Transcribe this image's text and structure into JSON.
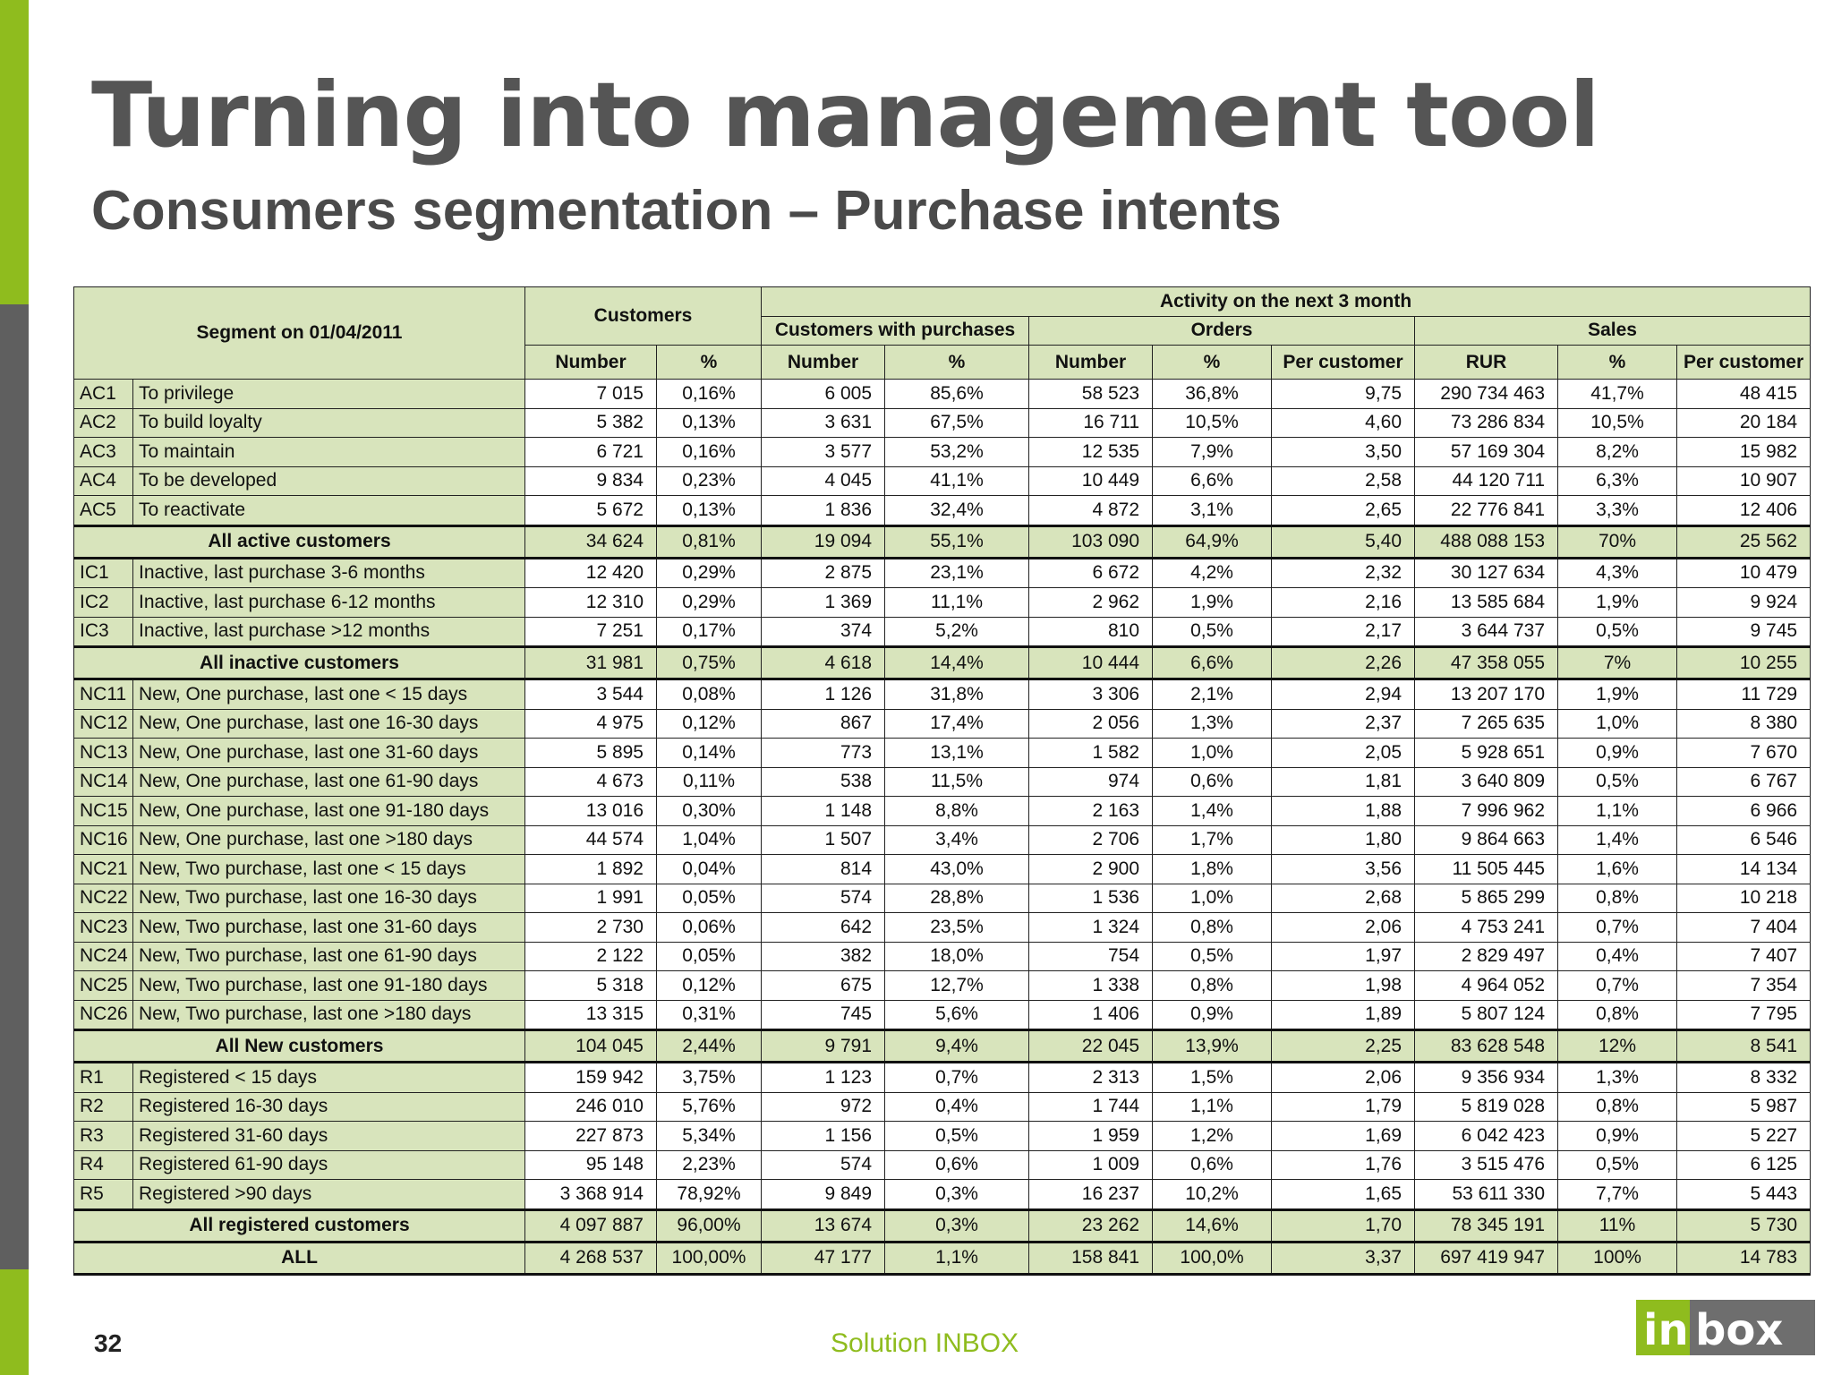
{
  "slide": {
    "title": "Turning into management tool",
    "subtitle": "Consumers segmentation – Purchase intents",
    "page_number": "32",
    "footer": "Solution INBOX",
    "logo_text": "inbox",
    "colors": {
      "accent_green": "#8fbc1e",
      "side_dark": "#5f5f5f",
      "table_fill": "#d8e4bc",
      "title": "#555555"
    }
  },
  "table": {
    "headers": {
      "segment": "Segment on 01/04/2011",
      "customers": "Customers",
      "activity": "Activity on the next 3 month",
      "customers_with_purchases": "Customers with purchases",
      "orders": "Orders",
      "sales": "Sales",
      "sub": [
        "Number",
        "%",
        "Number",
        "%",
        "Number",
        "%",
        "Per customer",
        "RUR",
        "%",
        "Per customer"
      ]
    },
    "rows": [
      {
        "code": "AC1",
        "label": "To privilege",
        "v": [
          "7 015",
          "0,16%",
          "6 005",
          "85,6%",
          "58 523",
          "36,8%",
          "9,75",
          "290 734 463",
          "41,7%",
          "48 415"
        ]
      },
      {
        "code": "AC2",
        "label": "To build loyalty",
        "v": [
          "5 382",
          "0,13%",
          "3 631",
          "67,5%",
          "16 711",
          "10,5%",
          "4,60",
          "73 286 834",
          "10,5%",
          "20 184"
        ]
      },
      {
        "code": "AC3",
        "label": "To maintain",
        "v": [
          "6 721",
          "0,16%",
          "3 577",
          "53,2%",
          "12 535",
          "7,9%",
          "3,50",
          "57 169 304",
          "8,2%",
          "15 982"
        ]
      },
      {
        "code": "AC4",
        "label": "To be developed",
        "v": [
          "9 834",
          "0,23%",
          "4 045",
          "41,1%",
          "10 449",
          "6,6%",
          "2,58",
          "44 120 711",
          "6,3%",
          "10 907"
        ]
      },
      {
        "code": "AC5",
        "label": "To reactivate",
        "v": [
          "5 672",
          "0,13%",
          "1 836",
          "32,4%",
          "4 872",
          "3,1%",
          "2,65",
          "22 776 841",
          "3,3%",
          "12 406"
        ]
      },
      {
        "summary": "All active customers",
        "v": [
          "34 624",
          "0,81%",
          "19 094",
          "55,1%",
          "103 090",
          "64,9%",
          "5,40",
          "488 088 153",
          "70%",
          "25 562"
        ]
      },
      {
        "code": "IC1",
        "label": "Inactive, last purchase 3-6 months",
        "v": [
          "12 420",
          "0,29%",
          "2 875",
          "23,1%",
          "6 672",
          "4,2%",
          "2,32",
          "30 127 634",
          "4,3%",
          "10 479"
        ]
      },
      {
        "code": "IC2",
        "label": "Inactive, last purchase 6-12 months",
        "v": [
          "12 310",
          "0,29%",
          "1 369",
          "11,1%",
          "2 962",
          "1,9%",
          "2,16",
          "13 585 684",
          "1,9%",
          "9 924"
        ]
      },
      {
        "code": "IC3",
        "label": "Inactive, last purchase >12 months",
        "v": [
          "7 251",
          "0,17%",
          "374",
          "5,2%",
          "810",
          "0,5%",
          "2,17",
          "3 644 737",
          "0,5%",
          "9 745"
        ]
      },
      {
        "summary": "All inactive customers",
        "v": [
          "31 981",
          "0,75%",
          "4 618",
          "14,4%",
          "10 444",
          "6,6%",
          "2,26",
          "47 358 055",
          "7%",
          "10 255"
        ]
      },
      {
        "code": "NC11",
        "label": "New, One purchase, last one < 15 days",
        "v": [
          "3 544",
          "0,08%",
          "1 126",
          "31,8%",
          "3 306",
          "2,1%",
          "2,94",
          "13 207 170",
          "1,9%",
          "11 729"
        ]
      },
      {
        "code": "NC12",
        "label": "New, One purchase, last one 16-30 days",
        "v": [
          "4 975",
          "0,12%",
          "867",
          "17,4%",
          "2 056",
          "1,3%",
          "2,37",
          "7 265 635",
          "1,0%",
          "8 380"
        ]
      },
      {
        "code": "NC13",
        "label": "New, One purchase, last one 31-60 days",
        "v": [
          "5 895",
          "0,14%",
          "773",
          "13,1%",
          "1 582",
          "1,0%",
          "2,05",
          "5 928 651",
          "0,9%",
          "7 670"
        ]
      },
      {
        "code": "NC14",
        "label": "New, One purchase, last one 61-90 days",
        "v": [
          "4 673",
          "0,11%",
          "538",
          "11,5%",
          "974",
          "0,6%",
          "1,81",
          "3 640 809",
          "0,5%",
          "6 767"
        ]
      },
      {
        "code": "NC15",
        "label": "New, One purchase, last one 91-180 days",
        "v": [
          "13 016",
          "0,30%",
          "1 148",
          "8,8%",
          "2 163",
          "1,4%",
          "1,88",
          "7 996 962",
          "1,1%",
          "6 966"
        ]
      },
      {
        "code": "NC16",
        "label": "New, One purchase, last one >180 days",
        "v": [
          "44 574",
          "1,04%",
          "1 507",
          "3,4%",
          "2 706",
          "1,7%",
          "1,80",
          "9 864 663",
          "1,4%",
          "6 546"
        ]
      },
      {
        "code": "NC21",
        "label": "New, Two purchase, last one < 15 days",
        "v": [
          "1 892",
          "0,04%",
          "814",
          "43,0%",
          "2 900",
          "1,8%",
          "3,56",
          "11 505 445",
          "1,6%",
          "14 134"
        ]
      },
      {
        "code": "NC22",
        "label": "New, Two purchase, last one 16-30 days",
        "v": [
          "1 991",
          "0,05%",
          "574",
          "28,8%",
          "1 536",
          "1,0%",
          "2,68",
          "5 865 299",
          "0,8%",
          "10 218"
        ]
      },
      {
        "code": "NC23",
        "label": "New, Two purchase, last one 31-60 days",
        "v": [
          "2 730",
          "0,06%",
          "642",
          "23,5%",
          "1 324",
          "0,8%",
          "2,06",
          "4 753 241",
          "0,7%",
          "7 404"
        ]
      },
      {
        "code": "NC24",
        "label": "New, Two purchase, last one 61-90 days",
        "v": [
          "2 122",
          "0,05%",
          "382",
          "18,0%",
          "754",
          "0,5%",
          "1,97",
          "2 829 497",
          "0,4%",
          "7 407"
        ]
      },
      {
        "code": "NC25",
        "label": "New, Two purchase, last one 91-180 days",
        "v": [
          "5 318",
          "0,12%",
          "675",
          "12,7%",
          "1 338",
          "0,8%",
          "1,98",
          "4 964 052",
          "0,7%",
          "7 354"
        ]
      },
      {
        "code": "NC26",
        "label": "New, Two purchase, last one >180 days",
        "v": [
          "13 315",
          "0,31%",
          "745",
          "5,6%",
          "1 406",
          "0,9%",
          "1,89",
          "5 807 124",
          "0,8%",
          "7 795"
        ]
      },
      {
        "summary": "All New customers",
        "v": [
          "104 045",
          "2,44%",
          "9 791",
          "9,4%",
          "22 045",
          "13,9%",
          "2,25",
          "83 628 548",
          "12%",
          "8 541"
        ]
      },
      {
        "code": "R1",
        "label": "Registered < 15 days",
        "v": [
          "159 942",
          "3,75%",
          "1 123",
          "0,7%",
          "2 313",
          "1,5%",
          "2,06",
          "9 356 934",
          "1,3%",
          "8 332"
        ]
      },
      {
        "code": "R2",
        "label": "Registered  16-30 days",
        "v": [
          "246 010",
          "5,76%",
          "972",
          "0,4%",
          "1 744",
          "1,1%",
          "1,79",
          "5 819 028",
          "0,8%",
          "5 987"
        ]
      },
      {
        "code": "R3",
        "label": "Registered  31-60 days",
        "v": [
          "227 873",
          "5,34%",
          "1 156",
          "0,5%",
          "1 959",
          "1,2%",
          "1,69",
          "6 042 423",
          "0,9%",
          "5 227"
        ]
      },
      {
        "code": "R4",
        "label": "Registered  61-90 days",
        "v": [
          "95 148",
          "2,23%",
          "574",
          "0,6%",
          "1 009",
          "0,6%",
          "1,76",
          "3 515 476",
          "0,5%",
          "6 125"
        ]
      },
      {
        "code": "R5",
        "label": "Registered  >90 days",
        "v": [
          "3 368 914",
          "78,92%",
          "9 849",
          "0,3%",
          "16 237",
          "10,2%",
          "1,65",
          "53 611 330",
          "7,7%",
          "5 443"
        ]
      },
      {
        "summary": "All registered customers",
        "v": [
          "4 097 887",
          "96,00%",
          "13 674",
          "0,3%",
          "23 262",
          "14,6%",
          "1,70",
          "78 345 191",
          "11%",
          "5 730"
        ]
      },
      {
        "summary": "ALL",
        "v": [
          "4 268 537",
          "100,00%",
          "47 177",
          "1,1%",
          "158 841",
          "100,0%",
          "3,37",
          "697 419 947",
          "100%",
          "14 783"
        ]
      }
    ]
  }
}
